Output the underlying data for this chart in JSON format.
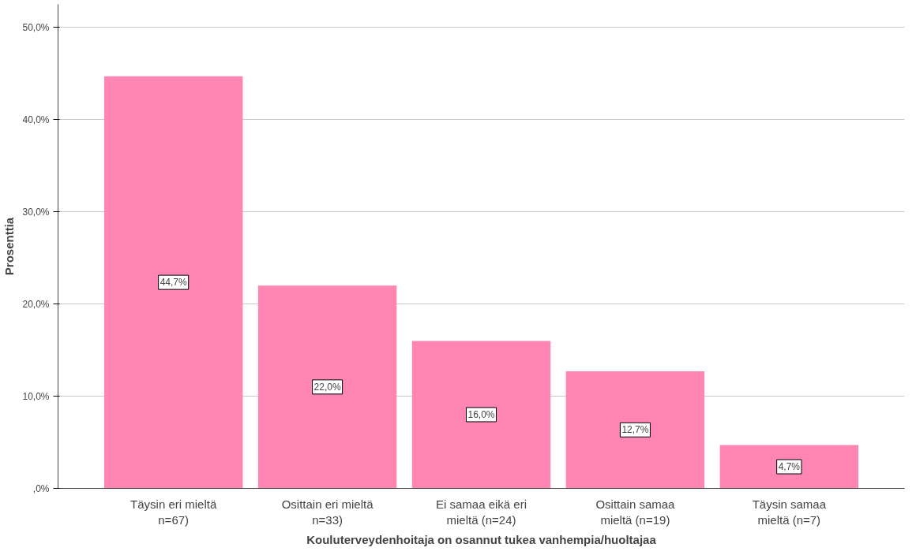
{
  "chart_data": {
    "type": "bar",
    "xlabel": "Kouluterveydenhoitaja on osannut tukea vanhempia/huoltajaa",
    "ylabel": "Prosenttia",
    "categories": [
      "Täysin eri mieltä\nn=67)",
      "Osittain eri mieltä\nn=33)",
      "Ei samaa eikä eri\nmieltä (n=24)",
      "Osittain samaa\nmieltä (n=19)",
      "Täysin samaa\nmieltä (n=7)"
    ],
    "values": [
      44.7,
      22.0,
      16.0,
      12.7,
      4.7
    ],
    "value_labels": [
      "44,7%",
      "22,0%",
      "16,0%",
      "12,7%",
      "4,7%"
    ],
    "color": "#ff85b3",
    "ylim": [
      0,
      52.5
    ],
    "yticks": [
      {
        "value": 0,
        "label": ",0%"
      },
      {
        "value": 10,
        "label": "10,0%"
      },
      {
        "value": 20,
        "label": "20,0%"
      },
      {
        "value": 30,
        "label": "30,0%"
      },
      {
        "value": 40,
        "label": "40,0%"
      },
      {
        "value": 50,
        "label": "50,0%"
      }
    ],
    "grid": "y"
  }
}
